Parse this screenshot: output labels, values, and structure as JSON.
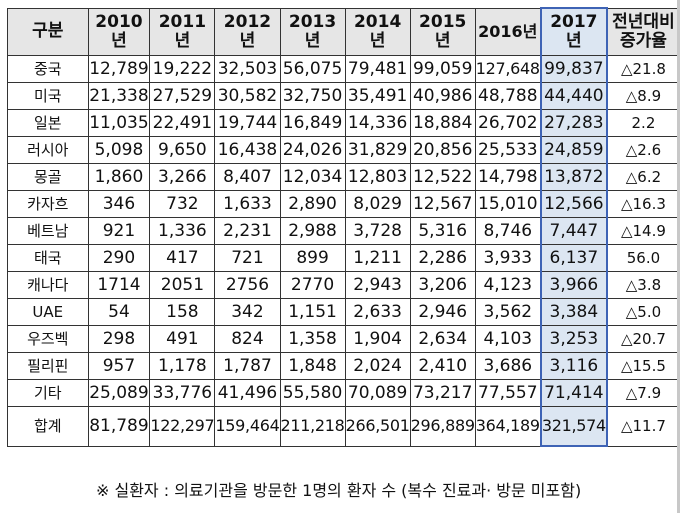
{
  "table": {
    "headers": [
      {
        "key": "category",
        "label": "구분"
      },
      {
        "key": "2010",
        "label": "2010 년"
      },
      {
        "key": "2011",
        "label": "2011 년"
      },
      {
        "key": "2012",
        "label": "2012 년"
      },
      {
        "key": "2013",
        "label": "2013 년"
      },
      {
        "key": "2014",
        "label": "2014 년"
      },
      {
        "key": "2015",
        "label": "2015 년"
      },
      {
        "key": "2016",
        "label": "2016년"
      },
      {
        "key": "2017",
        "label": "2017 년"
      },
      {
        "key": "change",
        "label": "전년대비 증가율"
      }
    ],
    "rows": [
      {
        "name": "중국",
        "values": [
          "12,789",
          "19,222",
          "32,503",
          "56,075",
          "79,481",
          "99,059",
          "127,648",
          "99,837"
        ],
        "change": "△21.8"
      },
      {
        "name": "미국",
        "values": [
          "21,338",
          "27,529",
          "30,582",
          "32,750",
          "35,491",
          "40,986",
          "48,788",
          "44,440"
        ],
        "change": "△8.9"
      },
      {
        "name": "일본",
        "values": [
          "11,035",
          "22,491",
          "19,744",
          "16,849",
          "14,336",
          "18,884",
          "26,702",
          "27,283"
        ],
        "change": "2.2"
      },
      {
        "name": "러시아",
        "values": [
          "5,098",
          "9,650",
          "16,438",
          "24,026",
          "31,829",
          "20,856",
          "25,533",
          "24,859"
        ],
        "change": "△2.6"
      },
      {
        "name": "몽골",
        "values": [
          "1,860",
          "3,266",
          "8,407",
          "12,034",
          "12,803",
          "12,522",
          "14,798",
          "13,872"
        ],
        "change": "△6.2"
      },
      {
        "name": "카자흐",
        "values": [
          "346",
          "732",
          "1,633",
          "2,890",
          "8,029",
          "12,567",
          "15,010",
          "12,566"
        ],
        "change": "△16.3"
      },
      {
        "name": "베트남",
        "values": [
          "921",
          "1,336",
          "2,231",
          "2,988",
          "3,728",
          "5,316",
          "8,746",
          "7,447"
        ],
        "change": "△14.9"
      },
      {
        "name": "태국",
        "values": [
          "290",
          "417",
          "721",
          "899",
          "1,211",
          "2,286",
          "3,933",
          "6,137"
        ],
        "change": "56.0"
      },
      {
        "name": "캐나다",
        "values": [
          "1714",
          "2051",
          "2756",
          "2770",
          "2,943",
          "3,206",
          "4,123",
          "3,966"
        ],
        "change": "△3.8"
      },
      {
        "name": "UAE",
        "values": [
          "54",
          "158",
          "342",
          "1,151",
          "2,633",
          "2,946",
          "3,562",
          "3,384"
        ],
        "change": "△5.0"
      },
      {
        "name": "우즈벡",
        "values": [
          "298",
          "491",
          "824",
          "1,358",
          "1,904",
          "2,634",
          "4,103",
          "3,253"
        ],
        "change": "△20.7"
      },
      {
        "name": "필리핀",
        "values": [
          "957",
          "1,178",
          "1,787",
          "1,848",
          "2,024",
          "2,410",
          "3,686",
          "3,116"
        ],
        "change": "△15.5"
      },
      {
        "name": "기타",
        "values": [
          "25,089",
          "33,776",
          "41,496",
          "55,580",
          "70,089",
          "73,217",
          "77,557",
          "71,414"
        ],
        "change": "△7.9"
      }
    ],
    "total": {
      "name": "합계",
      "values": [
        "81,789",
        "122,297",
        "159,464",
        "211,218",
        "266,501",
        "296,889",
        "364,189",
        "321,574"
      ],
      "change": "△11.7"
    }
  },
  "note": "※ 실환자 : 의료기관을 방문한 1명의 환자 수 (복수 진료과· 방문 미포함)",
  "colors": {
    "highlight_column": "#dce6f2",
    "highlight_border": "#3e63b5",
    "header_bg": "#e6e6e6"
  }
}
